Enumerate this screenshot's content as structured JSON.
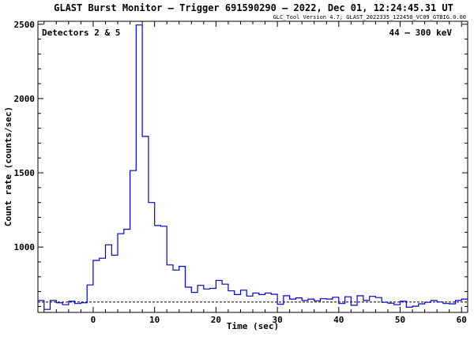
{
  "chart_data": {
    "type": "line",
    "title": "GLAST Burst Monitor  –  Trigger 691590290  –  2022, Dec 01, 12:24:45.31 UT",
    "subtitle": "GLC_Tool Version 4.7; GLAST_2022335_122450_VC09_GTBIG.0.00",
    "xlabel": "Time (sec)",
    "ylabel": "Count rate (counts/sec)",
    "annotation_left": "Detectors 2 & 5",
    "annotation_right": "44 – 300 keV",
    "xlim": [
      -9,
      61
    ],
    "ylim": [
      560,
      2520
    ],
    "x_ticks": [
      0,
      10,
      20,
      30,
      40,
      50,
      60
    ],
    "y_ticks": [
      1000,
      1500,
      2000,
      2500
    ],
    "background_level": 630,
    "colors": {
      "series": "#0000cc",
      "background_line": "#000000",
      "axes": "#000000"
    },
    "series": [
      {
        "step_edges": [
          -9,
          -8,
          -7,
          -6,
          -5,
          -4,
          -3,
          -2,
          -1,
          0,
          1,
          2,
          3,
          4,
          5,
          6,
          7,
          8,
          9,
          10,
          11,
          12,
          13,
          14,
          15,
          16,
          17,
          18,
          19,
          20,
          21,
          22,
          23,
          24,
          25,
          26,
          27,
          28,
          29,
          30,
          31,
          32,
          33,
          34,
          35,
          36,
          37,
          38,
          39,
          40,
          41,
          42,
          43,
          44,
          45,
          46,
          47,
          48,
          49,
          50,
          51,
          52,
          53,
          54,
          55,
          56,
          57,
          58,
          59,
          60,
          61
        ],
        "values": [
          640,
          580,
          640,
          625,
          612,
          635,
          620,
          625,
          745,
          910,
          925,
          1015,
          945,
          1090,
          1120,
          1515,
          2495,
          1745,
          1300,
          1145,
          1140,
          880,
          845,
          870,
          730,
          695,
          742,
          718,
          722,
          775,
          750,
          705,
          680,
          710,
          670,
          690,
          680,
          690,
          682,
          615,
          672,
          650,
          658,
          640,
          650,
          638,
          652,
          650,
          662,
          620,
          665,
          608,
          672,
          640,
          668,
          660,
          628,
          622,
          612,
          635,
          595,
          602,
          618,
          628,
          640,
          630,
          620,
          618,
          640,
          650
        ]
      }
    ]
  }
}
